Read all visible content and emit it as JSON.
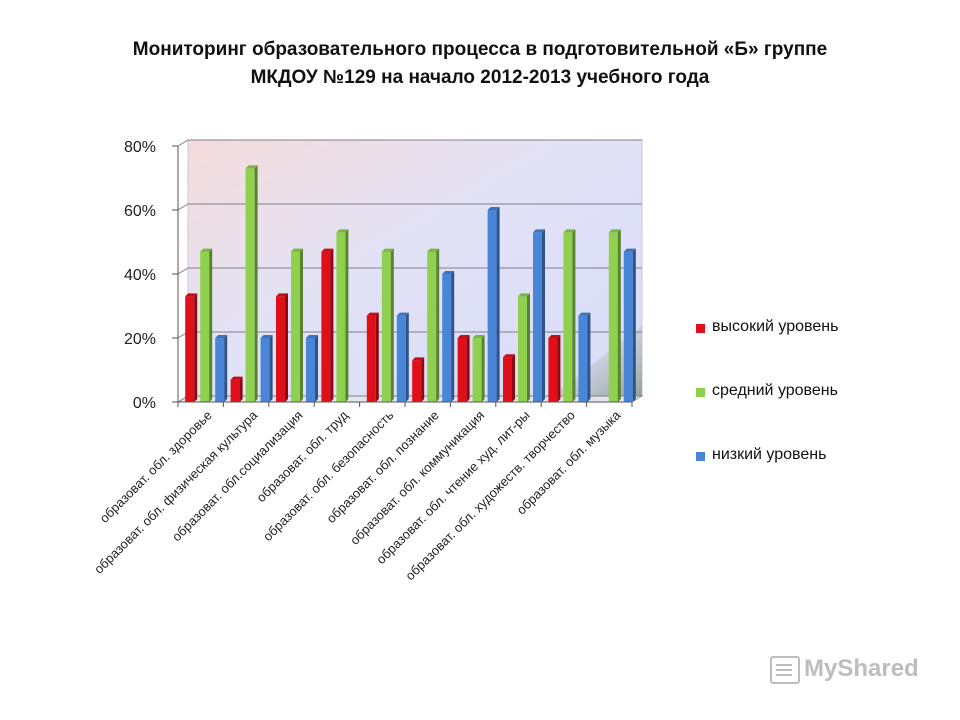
{
  "title_line1": "Мониторинг образовательного процесса в подготовительной «Б» группе",
  "title_line2": "МКДОУ №129 на начало 2012-2013 учебного года",
  "watermark": "MyShared",
  "chart_data": {
    "type": "bar",
    "title": "Мониторинг образовательного процесса в подготовительной «Б» группе МКДОУ №129 на начало 2012-2013 учебного года",
    "categories": [
      "образоват. обл. здоровье",
      "образоват. обл. физическая культура",
      "образоват. обл.социализация",
      "образоват. обл. труд",
      "образоват. обл. безопасность",
      "образоват. обл. познание",
      "образоват. обл. коммуникация",
      "образоват. обл. чтение худ. лит-ры",
      "образоват. обл. художеств. творчество",
      "образоват. обл. музыка"
    ],
    "series": [
      {
        "name": "высокий уровень",
        "color": "#e0101a",
        "values": [
          33,
          7,
          33,
          47,
          27,
          13,
          20,
          14,
          20,
          0
        ]
      },
      {
        "name": "средний уровень",
        "color": "#8fd14f",
        "values": [
          47,
          73,
          47,
          53,
          47,
          47,
          20,
          33,
          53,
          53
        ]
      },
      {
        "name": "низкий уровень",
        "color": "#4a86d8",
        "values": [
          20,
          20,
          20,
          0,
          27,
          40,
          60,
          53,
          27,
          47
        ]
      }
    ],
    "yticks": [
      "0%",
      "20%",
      "40%",
      "60%",
      "80%"
    ],
    "ylim": [
      0,
      80
    ],
    "xlabel": "",
    "ylabel": "",
    "legend_position": "right"
  }
}
